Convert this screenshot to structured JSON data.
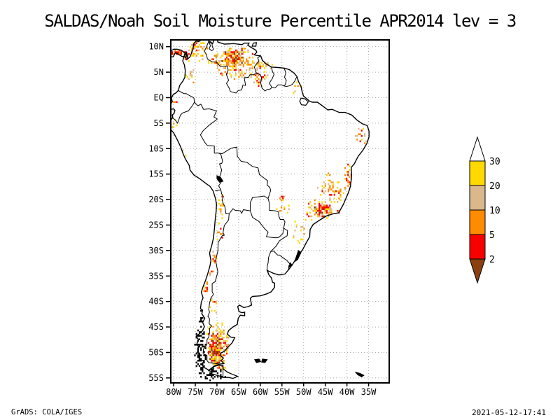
{
  "title": "SALDAS/Noah Soil Moisture Percentile APR2014 lev = 3",
  "footer": {
    "left": "GrADS: COLA/IGES",
    "right": "2021-05-12-17:41"
  },
  "map": {
    "grid_color": "#A8A8A8",
    "frame_color": "#000000",
    "axes": {
      "lat_labels": [
        "10N",
        "5N",
        "EQ",
        "5S",
        "10S",
        "15S",
        "20S",
        "25S",
        "30S",
        "35S",
        "40S",
        "45S",
        "50S",
        "55S"
      ],
      "lat_values": [
        10,
        5,
        0,
        -5,
        -10,
        -15,
        -20,
        -25,
        -30,
        -35,
        -40,
        -45,
        -50,
        -55
      ],
      "lon_labels": [
        "80W",
        "75W",
        "70W",
        "65W",
        "60W",
        "55W",
        "50W",
        "45W",
        "40W",
        "35W"
      ],
      "lon_values": [
        -80,
        -75,
        -70,
        -65,
        -60,
        -55,
        -50,
        -45,
        -40,
        -35
      ]
    }
  },
  "colorbar": {
    "tick_labels": [
      "30",
      "20",
      "10",
      "5",
      "2"
    ],
    "segment_colors": [
      "#FFD900",
      "#DBB88C",
      "#FF8C00",
      "#F80000"
    ],
    "arrow_top_color": "#FFFFFF",
    "arrow_bottom_color": "#8B4010"
  },
  "chart_data": {
    "type": "shaded-map",
    "variable": "Soil Moisture Percentile",
    "period": "APR2014",
    "level": 3,
    "region": "South America",
    "lon_range_deg": [
      -80.65,
      -30.3
    ],
    "lat_range_deg": [
      -56.0,
      11.33
    ],
    "grid_interval_deg": 5,
    "levels": [
      2,
      5,
      10,
      20,
      30
    ],
    "level_colors": {
      "below_2": "#8B4010",
      "2_to_5": "#F80000",
      "5_to_10": "#FF8C00",
      "10_to_20": "#DBB88C",
      "20_to_30": "#FFD900",
      "above_30": "#FFFFFF"
    },
    "palettes": {
      "extreme": [
        [
          "#7B3A00",
          0.15
        ],
        [
          "#F80000",
          0.4
        ],
        [
          "#FF8C00",
          0.18
        ],
        [
          "#DBB88C",
          0.14
        ],
        [
          "#FFD900",
          0.13
        ]
      ],
      "high": [
        [
          "#F80000",
          0.32
        ],
        [
          "#FF8C00",
          0.3
        ],
        [
          "#DBB88C",
          0.16
        ],
        [
          "#FFD900",
          0.22
        ]
      ],
      "med": [
        [
          "#F80000",
          0.06
        ],
        [
          "#FF8C00",
          0.2
        ],
        [
          "#DBB88C",
          0.28
        ],
        [
          "#FFD900",
          0.46
        ]
      ],
      "low": [
        [
          "#FF8C00",
          0.1
        ],
        [
          "#DBB88C",
          0.18
        ],
        [
          "#FFD900",
          0.72
        ]
      ],
      "black": [
        [
          "#000000",
          1.0
        ]
      ]
    },
    "hotspots": [
      {
        "id": "panama-isthmus",
        "lon": -79.5,
        "lat": 9.0,
        "rx": 1.5,
        "ry": 0.6,
        "density": 0.75,
        "severity": "high"
      },
      {
        "id": "darien",
        "lon": -77.3,
        "lat": 8.4,
        "rx": 0.9,
        "ry": 0.8,
        "density": 0.7,
        "severity": "high"
      },
      {
        "id": "caribbean-colombia",
        "lon": -74.6,
        "lat": 9.3,
        "rx": 2.4,
        "ry": 2.0,
        "density": 0.35,
        "severity": "med"
      },
      {
        "id": "guajira-red",
        "lon": -75.3,
        "lat": 10.4,
        "rx": 0.9,
        "ry": 0.6,
        "density": 0.7,
        "severity": "high"
      },
      {
        "id": "colombia-andes",
        "lon": -76.2,
        "lat": 5.0,
        "rx": 1.2,
        "ry": 2.6,
        "density": 0.22,
        "severity": "low"
      },
      {
        "id": "llanos-west",
        "lon": -70.6,
        "lat": 7.6,
        "rx": 2.0,
        "ry": 1.7,
        "density": 0.3,
        "severity": "med"
      },
      {
        "id": "venezuela-fringe",
        "lon": -65.6,
        "lat": 6.8,
        "rx": 4.6,
        "ry": 3.3,
        "density": 0.38,
        "severity": "med"
      },
      {
        "id": "venezuela-core",
        "lon": -66.4,
        "lat": 7.9,
        "rx": 2.7,
        "ry": 1.7,
        "density": 0.9,
        "severity": "extreme"
      },
      {
        "id": "guyana-roraima",
        "lon": -60.3,
        "lat": 4.7,
        "rx": 2.2,
        "ry": 2.4,
        "density": 0.3,
        "severity": "med"
      },
      {
        "id": "roraima-red",
        "lon": -60.4,
        "lat": 3.3,
        "rx": 0.6,
        "ry": 0.6,
        "density": 0.85,
        "severity": "high"
      },
      {
        "id": "guyana-coast",
        "lon": -58.3,
        "lat": 6.3,
        "rx": 1.2,
        "ry": 1.1,
        "density": 0.35,
        "severity": "med"
      },
      {
        "id": "amapa",
        "lon": -51.8,
        "lat": 2.0,
        "rx": 1.1,
        "ry": 1.7,
        "density": 0.18,
        "severity": "low"
      },
      {
        "id": "ne-brazil-tip",
        "lon": -36.9,
        "lat": -7.6,
        "rx": 1.5,
        "ry": 2.0,
        "density": 0.25,
        "severity": "med"
      },
      {
        "id": "bahia-coast",
        "lon": -39.9,
        "lat": -14.8,
        "rx": 0.8,
        "ry": 2.4,
        "density": 0.55,
        "severity": "high"
      },
      {
        "id": "minas-scatter",
        "lon": -43.8,
        "lat": -17.6,
        "rx": 3.3,
        "ry": 3.1,
        "density": 0.28,
        "severity": "med"
      },
      {
        "id": "espirito-red",
        "lon": -41.8,
        "lat": -18.9,
        "rx": 0.8,
        "ry": 0.8,
        "density": 0.6,
        "severity": "high"
      },
      {
        "id": "se-brazil-fringe",
        "lon": -46.6,
        "lat": -21.9,
        "rx": 3.1,
        "ry": 2.3,
        "density": 0.4,
        "severity": "med"
      },
      {
        "id": "sao-paulo-core",
        "lon": -45.9,
        "lat": -21.9,
        "rx": 1.9,
        "ry": 1.4,
        "density": 0.9,
        "severity": "extreme"
      },
      {
        "id": "rio-coast",
        "lon": -43.0,
        "lat": -22.5,
        "rx": 1.6,
        "ry": 0.6,
        "density": 0.5,
        "severity": "high"
      },
      {
        "id": "parana-scatter",
        "lon": -50.9,
        "lat": -26.0,
        "rx": 2.5,
        "ry": 2.6,
        "density": 0.2,
        "severity": "low"
      },
      {
        "id": "mato-grosso-sul-dot",
        "lon": -55.2,
        "lat": -19.6,
        "rx": 0.7,
        "ry": 0.7,
        "density": 0.85,
        "severity": "high"
      },
      {
        "id": "ms-scatter",
        "lon": -54.8,
        "lat": -21.6,
        "rx": 1.7,
        "ry": 1.5,
        "density": 0.15,
        "severity": "low"
      },
      {
        "id": "ecuador-coast",
        "lon": -79.8,
        "lat": -1.0,
        "rx": 0.7,
        "ry": 2.2,
        "density": 0.3,
        "severity": "med"
      },
      {
        "id": "north-peru-coast",
        "lon": -80.0,
        "lat": -5.6,
        "rx": 0.6,
        "ry": 1.7,
        "density": 0.3,
        "severity": "low"
      },
      {
        "id": "peru-coast",
        "lon": -77.8,
        "lat": -10.4,
        "rx": 0.6,
        "ry": 1.6,
        "density": 0.2,
        "severity": "low"
      },
      {
        "id": "andes-north-chile",
        "lon": -69.1,
        "lat": -21.0,
        "rx": 0.6,
        "ry": 3.0,
        "density": 0.3,
        "severity": "med"
      },
      {
        "id": "andes-atacama",
        "lon": -69.4,
        "lat": -26.6,
        "rx": 0.7,
        "ry": 2.3,
        "density": 0.3,
        "severity": "med"
      },
      {
        "id": "chile-central",
        "lon": -70.7,
        "lat": -31.3,
        "rx": 0.6,
        "ry": 2.1,
        "density": 0.35,
        "severity": "med"
      },
      {
        "id": "chile-valparaiso",
        "lon": -71.4,
        "lat": -33.8,
        "rx": 0.6,
        "ry": 1.2,
        "density": 0.5,
        "severity": "high"
      },
      {
        "id": "chile-concepcion",
        "lon": -72.7,
        "lat": -37.3,
        "rx": 0.6,
        "ry": 1.7,
        "density": 0.5,
        "severity": "high"
      },
      {
        "id": "andes-neuquen",
        "lon": -71.0,
        "lat": -40.8,
        "rx": 0.8,
        "ry": 2.2,
        "density": 0.35,
        "severity": "med"
      },
      {
        "id": "patagonia-fringe",
        "lon": -70.0,
        "lat": -48.2,
        "rx": 2.9,
        "ry": 4.5,
        "density": 0.42,
        "severity": "med"
      },
      {
        "id": "patagonia-core",
        "lon": -70.4,
        "lat": -48.9,
        "rx": 1.9,
        "ry": 3.3,
        "density": 0.85,
        "severity": "extreme"
      },
      {
        "id": "tierra-del-fuego-north",
        "lon": -69.4,
        "lat": -52.8,
        "rx": 1.2,
        "ry": 0.6,
        "density": 0.6,
        "severity": "high"
      },
      {
        "id": "chiloe-fjords",
        "lon": -73.9,
        "lat": -43.0,
        "rx": 0.7,
        "ry": 1.6,
        "density": 0.3,
        "severity": "black"
      },
      {
        "id": "patagonia-fjords",
        "lon": -74.0,
        "lat": -49.6,
        "rx": 1.3,
        "ry": 5.2,
        "density": 0.5,
        "severity": "black"
      },
      {
        "id": "magellan-fjords",
        "lon": -71.3,
        "lat": -54.2,
        "rx": 3.4,
        "ry": 1.4,
        "density": 0.4,
        "severity": "black"
      }
    ]
  }
}
